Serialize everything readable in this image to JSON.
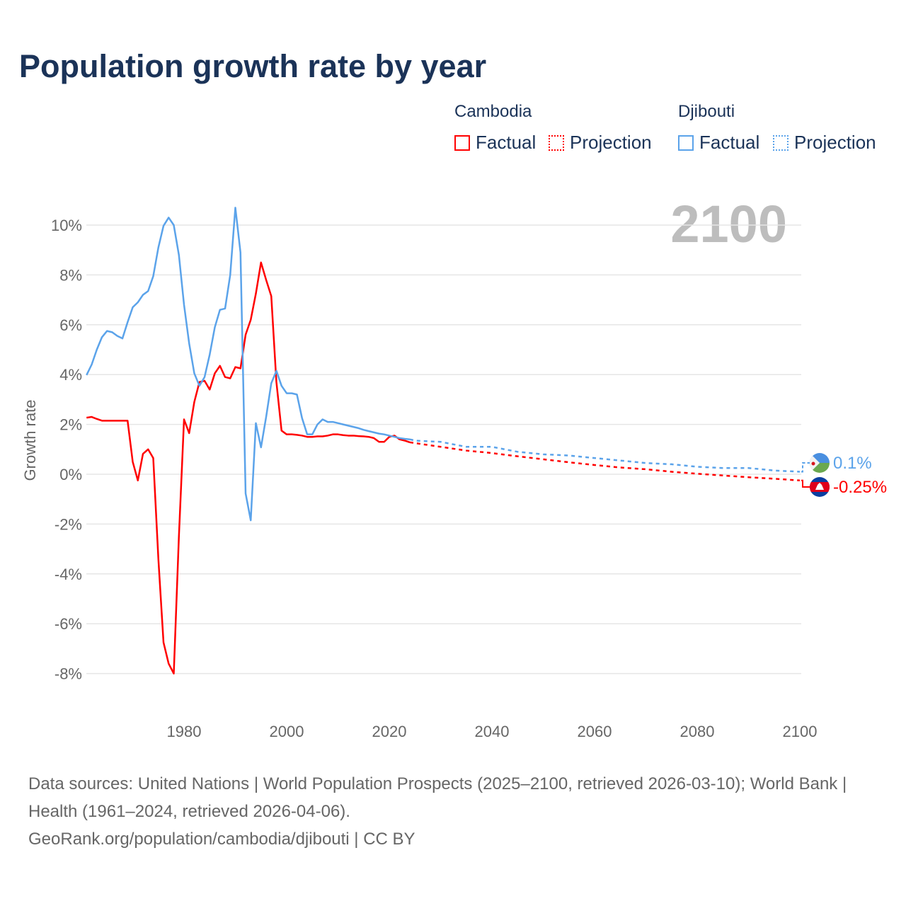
{
  "title": "Population growth rate by year",
  "legend": {
    "groups": [
      {
        "name": "Cambodia",
        "factual": "Factual",
        "projection": "Projection",
        "color": "#ff0000"
      },
      {
        "name": "Djibouti",
        "factual": "Factual",
        "projection": "Projection",
        "color": "#5ba3ea"
      }
    ]
  },
  "year_label": "2100",
  "end_labels": {
    "djibouti": "0.1%",
    "cambodia": "-0.25%"
  },
  "footer": {
    "sources": "Data sources: United Nations | World Population Prospects (2025–2100, retrieved 2026-03-10); World Bank | Health (1961–2024, retrieved 2026-04-06).",
    "link": "GeoRank.org/population/cambodia/djibouti | CC BY"
  },
  "chart_data": {
    "type": "line",
    "title": "Population growth rate by year",
    "xlabel": "",
    "ylabel": "Growth rate",
    "xlim": [
      1961,
      2100
    ],
    "ylim": [
      -9.5,
      10.9
    ],
    "xticks": [
      1980,
      2000,
      2020,
      2040,
      2060,
      2080,
      2100
    ],
    "yticks": [
      10,
      8,
      6,
      4,
      2,
      0,
      -2,
      -4,
      -6,
      -8
    ],
    "ytick_labels": [
      "10%",
      "8%",
      "6%",
      "4%",
      "2%",
      "0%",
      "-2%",
      "-4%",
      "-6%",
      "-8%"
    ],
    "grid": true,
    "legend_position": "top-right",
    "series": [
      {
        "name": "Cambodia Factual",
        "color": "#ff0000",
        "dashed": false,
        "x": [
          1961,
          1962,
          1963,
          1964,
          1965,
          1966,
          1967,
          1968,
          1969,
          1970,
          1971,
          1972,
          1973,
          1974,
          1975,
          1976,
          1977,
          1978,
          1979,
          1980,
          1981,
          1982,
          1983,
          1984,
          1985,
          1986,
          1987,
          1988,
          1989,
          1990,
          1991,
          1992,
          1993,
          1994,
          1995,
          1996,
          1997,
          1998,
          1999,
          2000,
          2001,
          2002,
          2003,
          2004,
          2005,
          2006,
          2007,
          2008,
          2009,
          2010,
          2011,
          2012,
          2013,
          2014,
          2015,
          2016,
          2017,
          2018,
          2019,
          2020,
          2021,
          2022,
          2023,
          2024
        ],
        "y": [
          2.27,
          2.3,
          2.22,
          2.15,
          2.15,
          2.15,
          2.15,
          2.15,
          2.15,
          0.5,
          -0.25,
          0.82,
          1.0,
          0.65,
          -3.4,
          -6.75,
          -7.6,
          -8.0,
          -2.5,
          2.2,
          1.65,
          2.9,
          3.7,
          3.75,
          3.4,
          4.05,
          4.35,
          3.9,
          3.85,
          4.3,
          4.25,
          5.6,
          6.2,
          7.25,
          8.5,
          7.8,
          7.15,
          3.7,
          1.75,
          1.6,
          1.6,
          1.58,
          1.55,
          1.5,
          1.5,
          1.52,
          1.52,
          1.55,
          1.6,
          1.6,
          1.57,
          1.55,
          1.55,
          1.53,
          1.52,
          1.5,
          1.45,
          1.3,
          1.3,
          1.5,
          1.55,
          1.4,
          1.35,
          1.28
        ]
      },
      {
        "name": "Cambodia Projection",
        "color": "#ff0000",
        "dashed": true,
        "x": [
          2024,
          2025,
          2030,
          2035,
          2040,
          2045,
          2050,
          2055,
          2060,
          2065,
          2070,
          2075,
          2080,
          2085,
          2090,
          2095,
          2100
        ],
        "y": [
          1.28,
          1.25,
          1.1,
          0.95,
          0.85,
          0.72,
          0.6,
          0.48,
          0.37,
          0.27,
          0.2,
          0.1,
          0.02,
          -0.05,
          -0.12,
          -0.18,
          -0.25
        ]
      },
      {
        "name": "Djibouti Factual",
        "color": "#5ba3ea",
        "dashed": false,
        "x": [
          1961,
          1962,
          1963,
          1964,
          1965,
          1966,
          1967,
          1968,
          1969,
          1970,
          1971,
          1972,
          1973,
          1974,
          1975,
          1976,
          1977,
          1978,
          1979,
          1980,
          1981,
          1982,
          1983,
          1984,
          1985,
          1986,
          1987,
          1988,
          1989,
          1990,
          1991,
          1992,
          1993,
          1994,
          1995,
          1996,
          1997,
          1998,
          1999,
          2000,
          2001,
          2002,
          2003,
          2004,
          2005,
          2006,
          2007,
          2008,
          2009,
          2010,
          2011,
          2012,
          2013,
          2014,
          2015,
          2016,
          2017,
          2018,
          2019,
          2020,
          2021,
          2022,
          2023,
          2024
        ],
        "y": [
          3.98,
          4.4,
          5.0,
          5.5,
          5.75,
          5.7,
          5.55,
          5.45,
          6.1,
          6.7,
          6.9,
          7.2,
          7.35,
          7.95,
          9.1,
          9.97,
          10.3,
          10.0,
          8.8,
          6.8,
          5.25,
          4.05,
          3.55,
          3.9,
          4.8,
          5.9,
          6.6,
          6.65,
          8.0,
          10.7,
          8.9,
          -0.77,
          -1.85,
          2.05,
          1.08,
          2.3,
          3.65,
          4.15,
          3.55,
          3.25,
          3.25,
          3.2,
          2.25,
          1.6,
          1.6,
          2.0,
          2.2,
          2.1,
          2.1,
          2.05,
          2.0,
          1.95,
          1.9,
          1.85,
          1.78,
          1.73,
          1.68,
          1.63,
          1.6,
          1.55,
          1.5,
          1.45,
          1.42,
          1.4
        ]
      },
      {
        "name": "Djibouti Projection",
        "color": "#5ba3ea",
        "dashed": true,
        "x": [
          2024,
          2025,
          2030,
          2035,
          2040,
          2045,
          2050,
          2055,
          2060,
          2065,
          2070,
          2075,
          2080,
          2085,
          2090,
          2095,
          2100
        ],
        "y": [
          1.4,
          1.35,
          1.3,
          1.1,
          1.1,
          0.9,
          0.8,
          0.75,
          0.65,
          0.55,
          0.45,
          0.4,
          0.3,
          0.25,
          0.25,
          0.15,
          0.1
        ]
      }
    ]
  }
}
